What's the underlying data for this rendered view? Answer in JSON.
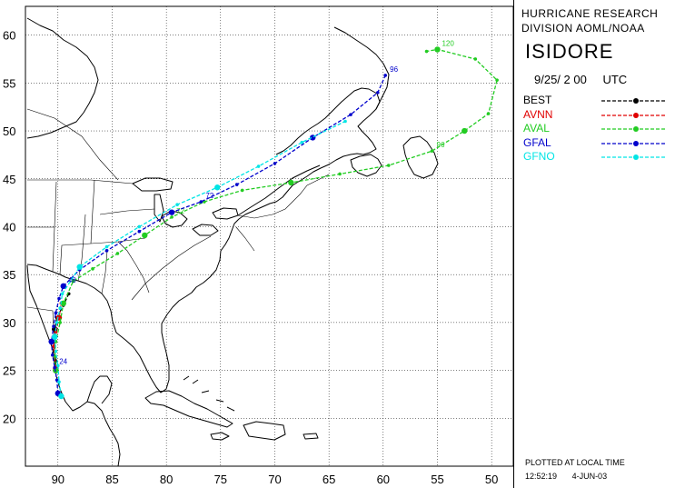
{
  "header": {
    "line1": "HURRICANE RESEARCH",
    "line2": "DIVISION AOML/NOAA",
    "storm_name": "ISIDORE",
    "datetime": "9/25/ 2 00",
    "tz": "UTC"
  },
  "footer": {
    "label": "PLOTTED AT LOCAL TIME",
    "time": "12:52:19",
    "date": "4-JUN-03"
  },
  "legend": [
    {
      "name": "BEST",
      "color": "#000000"
    },
    {
      "name": "AVNN",
      "color": "#e00000"
    },
    {
      "name": "AVAL",
      "color": "#22cc22"
    },
    {
      "name": "GFAL",
      "color": "#0000cc"
    },
    {
      "name": "GFNO",
      "color": "#00e5e5"
    }
  ],
  "axes": {
    "lon_ticks": [
      90,
      85,
      80,
      75,
      70,
      65,
      60,
      55,
      50
    ],
    "lat_ticks": [
      20,
      25,
      30,
      35,
      40,
      45,
      50,
      55,
      60
    ],
    "lon_range": [
      -93,
      -48
    ],
    "lat_range": [
      15,
      63
    ]
  },
  "tracks": [
    {
      "model": "BEST",
      "color": "#000000",
      "points": [
        [
          -90.2,
          25.0
        ],
        [
          -90.2,
          26.0
        ],
        [
          -90.3,
          27.0
        ],
        [
          -90.4,
          28.0
        ],
        [
          -90.3,
          29.3
        ],
        [
          -90.1,
          30.5
        ],
        [
          -89.5,
          31.8
        ],
        [
          -89.0,
          33.0
        ]
      ]
    },
    {
      "model": "AVNN",
      "color": "#e00000",
      "points": [
        [
          -90.2,
          25.2
        ],
        [
          -90.3,
          26.4
        ],
        [
          -90.4,
          27.5
        ],
        [
          -90.2,
          29.0
        ],
        [
          -89.9,
          30.5
        ],
        [
          -89.7,
          32.0
        ]
      ]
    },
    {
      "model": "AVAL",
      "color": "#22cc22",
      "points": [
        [
          -90.2,
          25.0
        ],
        [
          -90.3,
          26.5
        ],
        [
          -90.2,
          28.0
        ],
        [
          -89.8,
          30.0
        ],
        [
          -89.5,
          32.0
        ],
        [
          -88.6,
          34.3
        ],
        [
          -86.8,
          35.6
        ],
        [
          -84.5,
          37.2
        ],
        [
          -82.0,
          39.1
        ],
        [
          -79.5,
          41.0
        ],
        [
          -76.5,
          42.6
        ],
        [
          -73.0,
          43.8
        ],
        [
          -68.5,
          44.6
        ],
        [
          -64.0,
          45.5
        ],
        [
          -59.5,
          46.4
        ],
        [
          -55.5,
          47.9
        ],
        [
          -52.5,
          50.0
        ],
        [
          -50.3,
          51.8
        ],
        [
          -49.5,
          55.3
        ],
        [
          -51.5,
          57.5
        ],
        [
          -55.0,
          58.5
        ],
        [
          -56.0,
          58.3
        ]
      ],
      "labels": [
        {
          "text": "72",
          "lon": -79.5,
          "lat": 41.0
        },
        {
          "text": "96",
          "lon": -55.5,
          "lat": 47.9
        },
        {
          "text": "120",
          "lon": -55.0,
          "lat": 58.5
        }
      ]
    },
    {
      "model": "GFAL",
      "color": "#0000cc",
      "points": [
        [
          -90.0,
          22.6
        ],
        [
          -90.1,
          24.0
        ],
        [
          -90.3,
          25.3
        ],
        [
          -90.5,
          26.6
        ],
        [
          -90.6,
          28.0
        ],
        [
          -90.4,
          29.6
        ],
        [
          -90.2,
          31.0
        ],
        [
          -89.9,
          32.5
        ],
        [
          -89.5,
          33.8
        ],
        [
          -88.0,
          35.5
        ],
        [
          -85.5,
          37.5
        ],
        [
          -82.5,
          39.5
        ],
        [
          -79.5,
          41.5
        ],
        [
          -76.8,
          42.6
        ],
        [
          -73.5,
          44.4
        ],
        [
          -70.0,
          46.6
        ],
        [
          -66.5,
          49.3
        ],
        [
          -63.0,
          51.7
        ],
        [
          -60.5,
          54.0
        ],
        [
          -59.8,
          55.8
        ]
      ],
      "labels": [
        {
          "text": "24",
          "lon": -90.3,
          "lat": 25.3
        },
        {
          "text": "48",
          "lon": -89.5,
          "lat": 33.8
        },
        {
          "text": "72",
          "lon": -76.8,
          "lat": 42.6
        },
        {
          "text": "96",
          "lon": -59.8,
          "lat": 55.8
        }
      ]
    },
    {
      "model": "GFNO",
      "color": "#00e5e5",
      "points": [
        [
          -89.7,
          22.3
        ],
        [
          -89.9,
          23.8
        ],
        [
          -90.0,
          25.5
        ],
        [
          -90.2,
          27.0
        ],
        [
          -90.3,
          28.5
        ],
        [
          -90.1,
          30.0
        ],
        [
          -89.8,
          31.5
        ],
        [
          -89.6,
          33.0
        ],
        [
          -88.0,
          35.8
        ],
        [
          -85.5,
          37.9
        ],
        [
          -82.5,
          40.0
        ],
        [
          -79.0,
          42.3
        ],
        [
          -75.3,
          44.1
        ],
        [
          -71.5,
          46.3
        ],
        [
          -67.5,
          48.8
        ],
        [
          -63.5,
          51.0
        ]
      ]
    }
  ]
}
